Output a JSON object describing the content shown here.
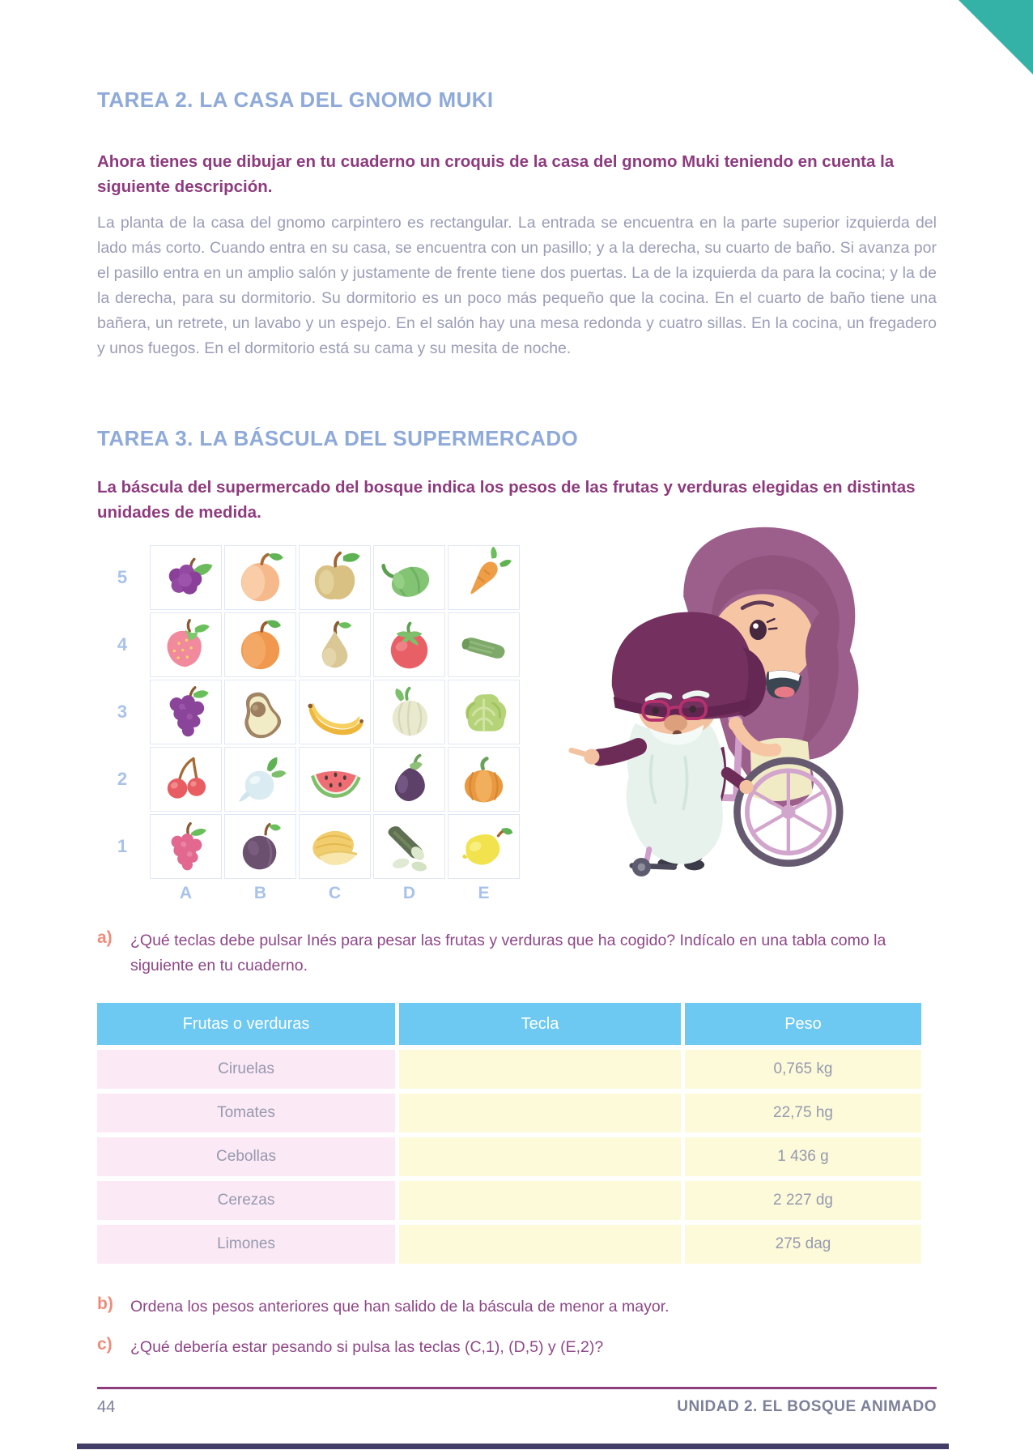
{
  "colors": {
    "title_blue": "#8faad9",
    "intro_purple": "#8d3b7e",
    "body_gray": "#9a9db6",
    "question_letter_coral": "#ee8c7c",
    "grid_label_blue": "#a9c2ea",
    "table_header_blue": "#6dc8f2",
    "row_pink": "#fce9f6",
    "row_yellow": "#fdfada",
    "footer_rule_purple": "#8c3d7c",
    "corner_teal": "#35b2a8"
  },
  "tarea2": {
    "title": "TAREA 2. LA CASA DEL GNOMO MUKI",
    "intro": "Ahora tienes que dibujar en tu cuaderno un croquis de la casa del gnomo Muki teniendo en cuenta la siguiente descripción.",
    "body": "La planta de la casa del gnomo carpintero es rectangular. La entrada se encuentra en la parte superior izquierda del lado más corto. Cuando entra en su casa, se encuentra con un pasillo; y a la derecha, su cuarto de baño. Si avanza por el pasillo entra en un amplio salón y justamente de frente tiene dos puertas. La de la izquierda da para la cocina; y la de la derecha, para su dormitorio. Su dormitorio es un poco más pequeño que la cocina. En el cuarto de baño tiene una bañera, un retrete, un lavabo y un espejo. En el salón hay una mesa redonda y cuatro sillas. En la cocina, un fregadero y unos fuegos. En el dormitorio está su cama y su mesita de noche."
  },
  "tarea3": {
    "title": "TAREA 3. LA BÁSCULA DEL SUPERMERCADO",
    "intro": "La báscula del supermercado del bosque indica los pesos de las frutas y verduras elegidas en distintas unidades de medida.",
    "grid": {
      "row_labels": [
        "5",
        "4",
        "3",
        "2",
        "1"
      ],
      "col_labels": [
        "A",
        "B",
        "C",
        "D",
        "E"
      ],
      "cells": [
        [
          "blackberry",
          "peach",
          "apple",
          "green-pepper",
          "carrot"
        ],
        [
          "strawberry",
          "orange",
          "pear",
          "tomato",
          "cucumber"
        ],
        [
          "grapes",
          "avocado",
          "banana",
          "onion",
          "cabbage"
        ],
        [
          "cherries",
          "turnip",
          "watermelon",
          "eggplant",
          "pumpkin"
        ],
        [
          "raspberry",
          "plum",
          "melon",
          "zucchini",
          "lemon"
        ]
      ]
    },
    "questions": [
      {
        "letter": "a)",
        "text": "¿Qué teclas debe pulsar Inés para pesar las frutas y verduras que ha cogido? Indícalo en una tabla como la siguiente en tu cuaderno."
      },
      {
        "letter": "b)",
        "text": "Ordena los pesos anteriores que han salido de la báscula de menor a mayor."
      },
      {
        "letter": "c)",
        "text": "¿Qué debería estar pesando si pulsa las teclas (C,1), (D,5) y (E,2)?"
      }
    ],
    "table": {
      "headers": [
        "Frutas o verduras",
        "Tecla",
        "Peso"
      ],
      "rows": [
        {
          "fruta": "Ciruelas",
          "tecla": "",
          "peso": "0,765 kg"
        },
        {
          "fruta": "Tomates",
          "tecla": "",
          "peso": "22,75 hg"
        },
        {
          "fruta": "Cebollas",
          "tecla": "",
          "peso": "1 436 g"
        },
        {
          "fruta": "Cerezas",
          "tecla": "",
          "peso": "2 227 dg"
        },
        {
          "fruta": "Limones",
          "tecla": "",
          "peso": "275 dag"
        }
      ]
    }
  },
  "footer": {
    "page_number": "44",
    "unit": "UNIDAD 2. EL BOSQUE ANIMADO"
  }
}
